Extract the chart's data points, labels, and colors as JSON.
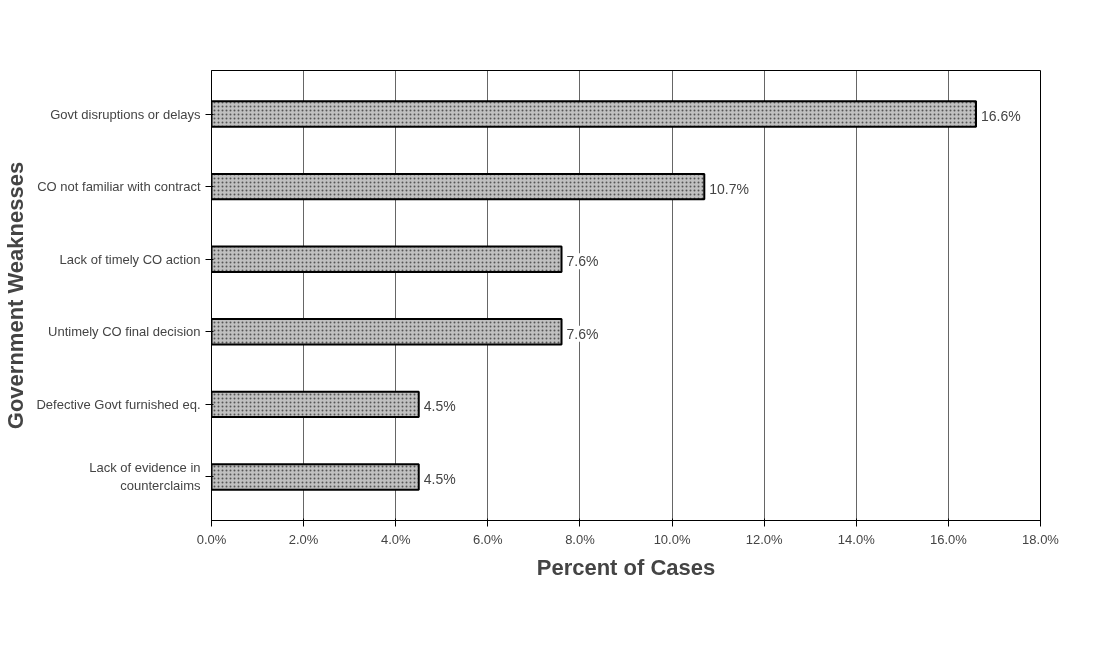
{
  "chart_data": {
    "type": "bar",
    "orientation": "horizontal",
    "xlabel": "Percent of Cases",
    "ylabel": "Government Weaknesses",
    "categories": [
      "Govt disruptions or delays",
      "CO not familiar with contract",
      "Lack of timely CO action",
      "Untimely CO final decision",
      "Defective Govt furnished eq.",
      "Lack of evidence in\ncounterclaims"
    ],
    "values": [
      16.6,
      10.7,
      7.6,
      7.6,
      4.5,
      4.5
    ],
    "value_labels": [
      "16.6%",
      "10.7%",
      "7.6%",
      "7.6%",
      "4.5%",
      "4.5%"
    ],
    "color": "#c0c0c0",
    "xlim": [
      0,
      18
    ],
    "xticks": [
      {
        "value": 0,
        "label": "0.0%"
      },
      {
        "value": 2,
        "label": "2.0%"
      },
      {
        "value": 4,
        "label": "4.0%"
      },
      {
        "value": 6,
        "label": "6.0%"
      },
      {
        "value": 8,
        "label": "8.0%"
      },
      {
        "value": 10,
        "label": "10.0%"
      },
      {
        "value": 12,
        "label": "12.0%"
      },
      {
        "value": 14,
        "label": "14.0%"
      },
      {
        "value": 16,
        "label": "16.0%"
      },
      {
        "value": 18,
        "label": "18.0%"
      }
    ],
    "grid": "x"
  }
}
